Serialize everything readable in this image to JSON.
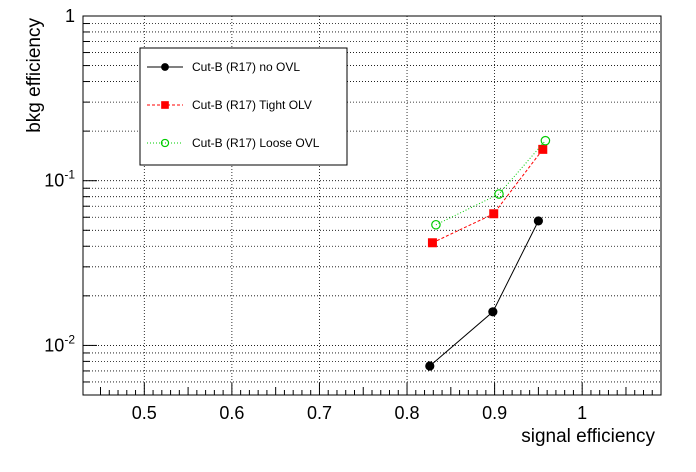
{
  "chart_data": {
    "type": "line",
    "title": "",
    "xlabel": "signal efficiency",
    "ylabel": "bkg efficiency",
    "xlim": [
      0.43,
      1.09
    ],
    "ylim": [
      0.005,
      1
    ],
    "yscale": "log",
    "grid": true,
    "x_ticks": [
      {
        "value": 0.5,
        "label": "0.5"
      },
      {
        "value": 0.6,
        "label": "0.6"
      },
      {
        "value": 0.7,
        "label": "0.7"
      },
      {
        "value": 0.8,
        "label": "0.8"
      },
      {
        "value": 0.9,
        "label": "0.9"
      },
      {
        "value": 1.0,
        "label": "1"
      }
    ],
    "y_ticks": [
      {
        "value": 0.01,
        "base": "10",
        "exp": "-2"
      },
      {
        "value": 0.1,
        "base": "10",
        "exp": "-1"
      },
      {
        "value": 1,
        "base": "1",
        "exp": ""
      }
    ],
    "legend_position": "top-left",
    "series": [
      {
        "name": "Cut-B (R17) no OVL",
        "color": "#000000",
        "marker": "filled-circle",
        "line": "solid",
        "x": [
          0.826,
          0.898,
          0.95
        ],
        "y": [
          0.0075,
          0.016,
          0.057
        ]
      },
      {
        "name": "Cut-B (R17) Tight OLV",
        "color": "#ff0000",
        "marker": "filled-square",
        "line": "dashed",
        "x": [
          0.829,
          0.899,
          0.955
        ],
        "y": [
          0.042,
          0.063,
          0.155
        ]
      },
      {
        "name": "Cut-B (R17) Loose OVL",
        "color": "#00cc00",
        "marker": "open-circle",
        "line": "dotted",
        "x": [
          0.833,
          0.905,
          0.958
        ],
        "y": [
          0.054,
          0.083,
          0.175
        ]
      }
    ]
  }
}
